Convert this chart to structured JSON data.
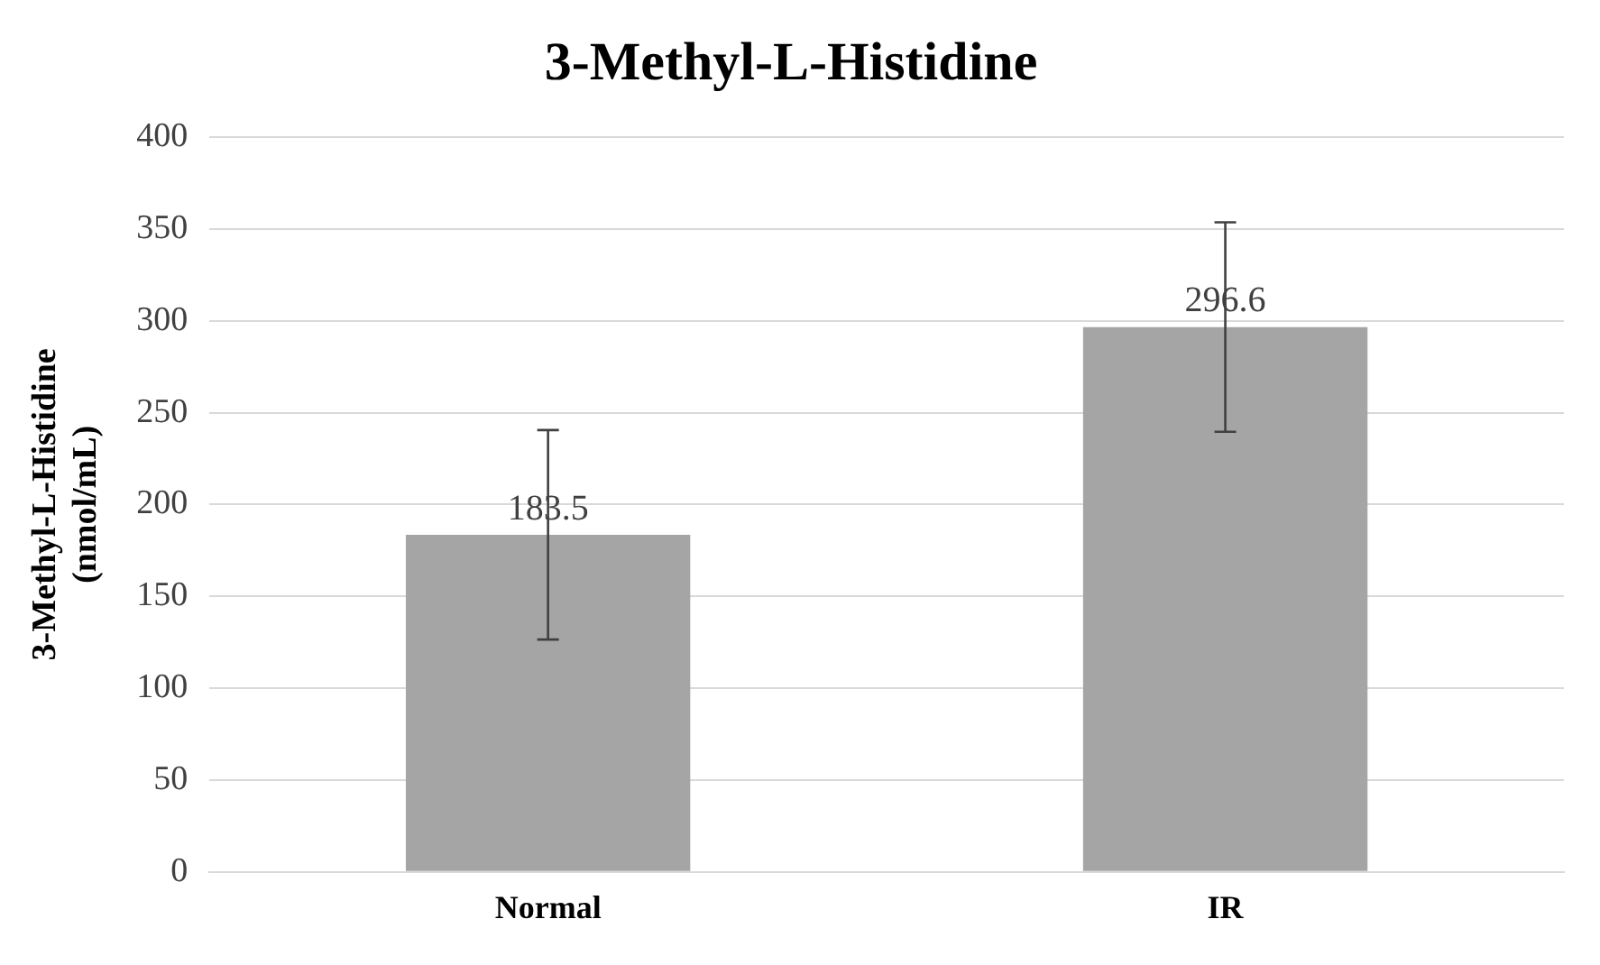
{
  "chart_data": {
    "type": "bar",
    "title": "3-Methyl-L-Histidine",
    "ylabel": "3-Methyl-L-Histidine\n(nmol/mL)",
    "categories": [
      "Normal",
      "IR"
    ],
    "values": [
      183.5,
      296.6
    ],
    "errors": [
      57,
      57
    ],
    "color": "#a5a5a5",
    "ylim": [
      0,
      400
    ],
    "yticks": [
      0,
      50,
      100,
      150,
      200,
      250,
      300,
      350,
      400
    ],
    "grid": "y",
    "legend": false,
    "data_labels": true
  }
}
